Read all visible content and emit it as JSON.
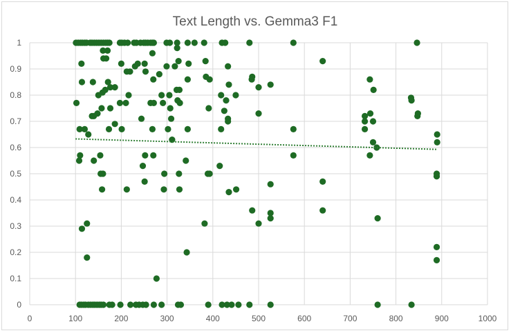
{
  "chart_data": {
    "type": "scatter",
    "title": "Text Length vs. Gemma3 F1",
    "xlabel": "",
    "ylabel": "",
    "xlim": [
      0,
      1000
    ],
    "ylim": [
      0,
      1
    ],
    "x_ticks": [
      "0",
      "100",
      "200",
      "300",
      "400",
      "500",
      "600",
      "700",
      "800",
      "900",
      "1000"
    ],
    "y_ticks": [
      "0",
      "0.1",
      "0.2",
      "0.3",
      "0.4",
      "0.5",
      "0.6",
      "0.7",
      "0.8",
      "0.9",
      "1"
    ],
    "grid": true,
    "legend": "none",
    "colors": {
      "points": "#1e6b24",
      "trendline": "#2e7d32",
      "grid": "#d9d9d9",
      "text": "#595959"
    },
    "trendline": {
      "type": "linear",
      "style": "dotted",
      "x": [
        100,
        890
      ],
      "y": [
        0.633,
        0.593
      ]
    },
    "series": [
      {
        "points": [
          [
            101,
            1
          ],
          [
            106,
            1
          ],
          [
            111,
            1
          ],
          [
            115,
            1
          ],
          [
            120,
            1
          ],
          [
            124,
            1
          ],
          [
            132,
            1
          ],
          [
            136,
            1
          ],
          [
            141,
            1
          ],
          [
            146,
            1
          ],
          [
            151,
            1
          ],
          [
            156,
            1
          ],
          [
            161,
            1
          ],
          [
            166,
            1
          ],
          [
            170,
            1
          ],
          [
            174,
            1
          ],
          [
            197,
            1
          ],
          [
            201,
            1
          ],
          [
            207,
            1
          ],
          [
            214,
            1
          ],
          [
            228,
            1
          ],
          [
            233,
            1
          ],
          [
            242,
            1
          ],
          [
            249,
            1
          ],
          [
            253,
            1
          ],
          [
            258,
            1
          ],
          [
            264,
            1
          ],
          [
            268,
            1
          ],
          [
            271,
            1
          ],
          [
            299,
            1
          ],
          [
            306,
            1
          ],
          [
            322,
            1
          ],
          [
            345,
            1
          ],
          [
            360,
            1
          ],
          [
            381,
            1
          ],
          [
            420,
            1
          ],
          [
            427,
            1
          ],
          [
            480,
            1
          ],
          [
            576,
            1
          ],
          [
            846,
            1
          ],
          [
            160,
            0.97
          ],
          [
            170,
            0.97
          ],
          [
            268,
            0.96
          ],
          [
            161,
            0.94
          ],
          [
            167,
            0.94
          ],
          [
            200,
            0.92
          ],
          [
            113,
            0.92
          ],
          [
            236,
            0.92
          ],
          [
            251,
            0.92
          ],
          [
            347,
            0.92
          ],
          [
            299,
            0.91
          ],
          [
            230,
            0.91
          ],
          [
            317,
            0.91
          ],
          [
            322,
            0.98
          ],
          [
            325,
            0.93
          ],
          [
            640,
            0.93
          ],
          [
            384,
            0.93
          ],
          [
            433,
            0.91
          ],
          [
            212,
            0.89
          ],
          [
            219,
            0.89
          ],
          [
            253,
            0.89
          ],
          [
            283,
            0.88
          ],
          [
            385,
            0.87
          ],
          [
            486,
            0.87
          ],
          [
            270,
            0.86
          ],
          [
            345,
            0.86
          ],
          [
            485,
            0.86
          ],
          [
            393,
            0.86
          ],
          [
            743,
            0.86
          ],
          [
            114,
            0.85
          ],
          [
            138,
            0.85
          ],
          [
            171,
            0.85
          ],
          [
            176,
            0.83
          ],
          [
            186,
            0.83
          ],
          [
            165,
            0.82
          ],
          [
            159,
            0.81
          ],
          [
            321,
            0.82
          ],
          [
            327,
            0.82
          ],
          [
            435,
            0.84
          ],
          [
            500,
            0.83
          ],
          [
            526,
            0.84
          ],
          [
            751,
            0.82
          ],
          [
            150,
            0.8
          ],
          [
            216,
            0.8
          ],
          [
            288,
            0.8
          ],
          [
            305,
            0.8
          ],
          [
            418,
            0.8
          ],
          [
            429,
            0.78
          ],
          [
            450,
            0.8
          ],
          [
            833,
            0.79
          ],
          [
            834,
            0.78
          ],
          [
            102,
            0.77
          ],
          [
            197,
            0.77
          ],
          [
            210,
            0.77
          ],
          [
            264,
            0.77
          ],
          [
            271,
            0.77
          ],
          [
            291,
            0.77
          ],
          [
            307,
            0.75
          ],
          [
            323,
            0.78
          ],
          [
            328,
            0.77
          ],
          [
            391,
            0.75
          ],
          [
            148,
            0.73
          ],
          [
            157,
            0.75
          ],
          [
            176,
            0.75
          ],
          [
            500,
            0.73
          ],
          [
            425,
            0.74
          ],
          [
            732,
            0.72
          ],
          [
            744,
            0.73
          ],
          [
            847,
            0.72
          ],
          [
            848,
            0.73
          ],
          [
            136,
            0.72
          ],
          [
            140,
            0.72
          ],
          [
            186,
            0.69
          ],
          [
            244,
            0.71
          ],
          [
            309,
            0.71
          ],
          [
            433,
            0.71
          ],
          [
            433,
            0.7
          ],
          [
            750,
            0.7
          ],
          [
            732,
            0.7
          ],
          [
            109,
            0.67
          ],
          [
            120,
            0.67
          ],
          [
            173,
            0.67
          ],
          [
            201,
            0.67
          ],
          [
            268,
            0.67
          ],
          [
            302,
            0.67
          ],
          [
            345,
            0.67
          ],
          [
            418,
            0.67
          ],
          [
            576,
            0.67
          ],
          [
            732,
            0.67
          ],
          [
            128,
            0.65
          ],
          [
            890,
            0.65
          ],
          [
            110,
            0.57
          ],
          [
            154,
            0.57
          ],
          [
            252,
            0.57
          ],
          [
            270,
            0.57
          ],
          [
            311,
            0.63
          ],
          [
            750,
            0.62
          ],
          [
            890,
            0.62
          ],
          [
            758,
            0.6
          ],
          [
            108,
            0.55
          ],
          [
            140,
            0.55
          ],
          [
            247,
            0.53
          ],
          [
            341,
            0.55
          ],
          [
            415,
            0.53
          ],
          [
            576,
            0.57
          ],
          [
            743,
            0.57
          ],
          [
            155,
            0.5
          ],
          [
            160,
            0.5
          ],
          [
            294,
            0.5
          ],
          [
            326,
            0.5
          ],
          [
            389,
            0.5
          ],
          [
            393,
            0.5
          ],
          [
            889,
            0.5
          ],
          [
            889,
            0.49
          ],
          [
            158,
            0.44
          ],
          [
            212,
            0.44
          ],
          [
            251,
            0.47
          ],
          [
            293,
            0.44
          ],
          [
            327,
            0.44
          ],
          [
            435,
            0.43
          ],
          [
            451,
            0.44
          ],
          [
            526,
            0.46
          ],
          [
            640,
            0.47
          ],
          [
            640,
            0.36
          ],
          [
            486,
            0.36
          ],
          [
            526,
            0.35
          ],
          [
            526,
            0.33
          ],
          [
            760,
            0.33
          ],
          [
            114,
            0.29
          ],
          [
            125,
            0.31
          ],
          [
            382,
            0.31
          ],
          [
            500,
            0.31
          ],
          [
            889,
            0.22
          ],
          [
            125,
            0.18
          ],
          [
            343,
            0.2
          ],
          [
            889,
            0.17
          ],
          [
            277,
            0.1
          ],
          [
            109,
            0
          ],
          [
            113,
            0
          ],
          [
            118,
            0
          ],
          [
            122,
            0
          ],
          [
            128,
            0
          ],
          [
            133,
            0
          ],
          [
            138,
            0
          ],
          [
            142,
            0
          ],
          [
            147,
            0
          ],
          [
            152,
            0
          ],
          [
            156,
            0
          ],
          [
            161,
            0
          ],
          [
            174,
            0
          ],
          [
            180,
            0
          ],
          [
            198,
            0
          ],
          [
            220,
            0
          ],
          [
            232,
            0
          ],
          [
            239,
            0
          ],
          [
            247,
            0
          ],
          [
            254,
            0
          ],
          [
            271,
            0
          ],
          [
            288,
            0
          ],
          [
            324,
            0
          ],
          [
            330,
            0
          ],
          [
            390,
            0
          ],
          [
            420,
            0
          ],
          [
            431,
            0
          ],
          [
            441,
            0
          ],
          [
            456,
            0
          ],
          [
            480,
            0
          ],
          [
            526,
            0
          ],
          [
            760,
            0
          ],
          [
            834,
            0
          ]
        ]
      }
    ]
  }
}
